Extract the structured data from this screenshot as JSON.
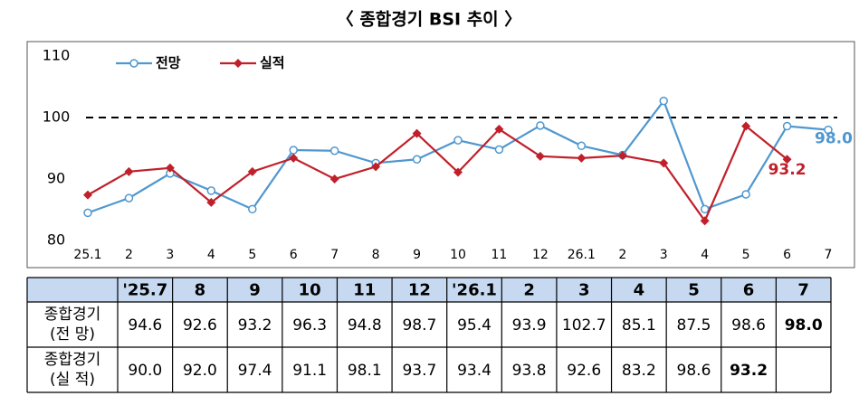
{
  "chart_data": {
    "type": "line",
    "title": "〈 종합경기 BSI 추이 〉",
    "categories": [
      "25.1",
      "2",
      "3",
      "4",
      "5",
      "6",
      "7",
      "8",
      "9",
      "10",
      "11",
      "12",
      "26.1",
      "2",
      "3",
      "4",
      "5",
      "6",
      "7"
    ],
    "ylim": [
      80,
      110
    ],
    "yticks": [
      80,
      90,
      100,
      110
    ],
    "reference_line": 100,
    "legend": "top-left",
    "series": [
      {
        "name": "전망",
        "color": "#4f97cf",
        "marker": "circle",
        "values": [
          84.5,
          86.9,
          90.9,
          88.1,
          85.1,
          94.7,
          94.6,
          92.6,
          93.2,
          96.3,
          94.8,
          98.7,
          95.4,
          93.9,
          102.7,
          85.1,
          87.5,
          98.6,
          98.0
        ],
        "value_labels": [
          null,
          null,
          null,
          null,
          null,
          null,
          "94.6",
          "92.6",
          "93.2",
          "96.3",
          "94.8",
          "98.7",
          "95.4",
          "93.9",
          "102.7",
          "85.1",
          "87.5",
          "98.6",
          "98.0"
        ]
      },
      {
        "name": "실적",
        "color": "#c0202a",
        "marker": "diamond",
        "values": [
          87.4,
          91.2,
          91.8,
          86.2,
          91.2,
          93.4,
          90.0,
          92.0,
          97.4,
          91.1,
          98.1,
          93.7,
          93.4,
          93.8,
          92.6,
          83.2,
          98.6,
          93.2,
          null
        ],
        "value_labels": [
          null,
          null,
          null,
          null,
          null,
          null,
          "90.0",
          "92.0",
          "97.4",
          "91.1",
          "98.1",
          "93.7",
          "93.4",
          "93.8",
          "92.6",
          "83.2",
          "98.6",
          "93.2",
          null
        ]
      }
    ],
    "table": {
      "columns": [
        "'25.7",
        "8",
        "9",
        "10",
        "11",
        "12",
        "'26.1",
        "2",
        "3",
        "4",
        "5",
        "6",
        "7"
      ],
      "row_labels": [
        [
          "종합경기",
          "(전 망)"
        ],
        [
          "종합경기",
          "(실 적)"
        ]
      ]
    }
  }
}
